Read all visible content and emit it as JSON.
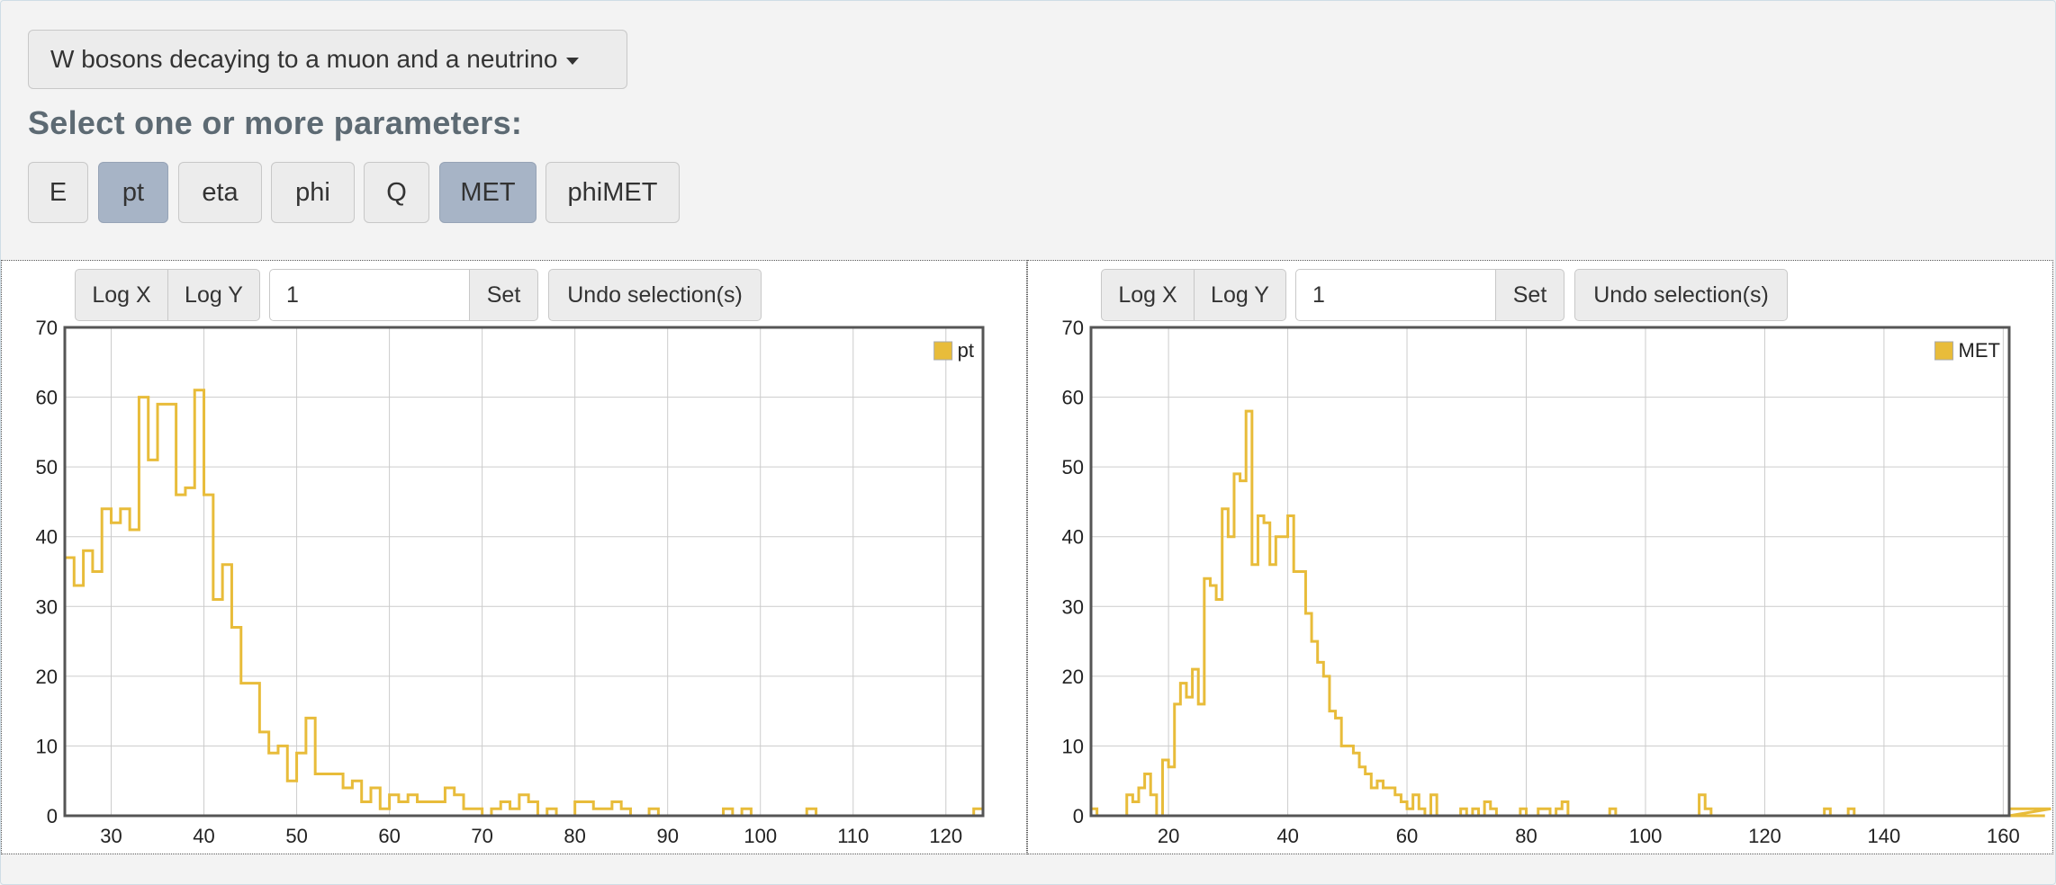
{
  "dataset_selector": {
    "label": "W bosons decaying to a muon and a neutrino",
    "caret_icon": "caret-down-icon"
  },
  "params_title": "Select one or more parameters:",
  "params": [
    {
      "label": "E",
      "active": false
    },
    {
      "label": "pt",
      "active": true
    },
    {
      "label": "eta",
      "active": false
    },
    {
      "label": "phi",
      "active": false
    },
    {
      "label": "Q",
      "active": false
    },
    {
      "label": "MET",
      "active": true
    },
    {
      "label": "phiMET",
      "active": false
    }
  ],
  "toolbar": {
    "logx": "Log X",
    "logy": "Log Y",
    "bin_value": "1",
    "set": "Set",
    "undo": "Undo selection(s)"
  },
  "colors": {
    "series": "#e8bc3a",
    "active_button": "#a7b4c6",
    "title": "#5d6a73"
  },
  "chart_data": [
    {
      "type": "histogram",
      "legend": "pt",
      "legend_position": "top-right",
      "grid": true,
      "xlim": [
        25,
        124
      ],
      "ylim": [
        0,
        70
      ],
      "x_ticks": [
        30,
        40,
        50,
        60,
        70,
        80,
        90,
        100,
        110,
        120
      ],
      "y_ticks": [
        0,
        10,
        20,
        30,
        40,
        50,
        60,
        70
      ],
      "bin_width": 1,
      "bins_start": 25,
      "values": [
        37,
        33,
        38,
        35,
        44,
        42,
        44,
        41,
        60,
        51,
        59,
        59,
        46,
        47,
        61,
        46,
        31,
        36,
        27,
        19,
        19,
        12,
        9,
        10,
        5,
        9,
        14,
        6,
        6,
        6,
        4,
        5,
        2,
        4,
        1,
        3,
        2,
        3,
        2,
        2,
        2,
        4,
        3,
        1,
        1,
        0,
        1,
        2,
        1,
        3,
        2,
        0,
        1,
        0,
        0,
        2,
        2,
        1,
        1,
        2,
        1,
        0,
        0,
        1,
        0,
        0,
        0,
        0,
        0,
        0,
        0,
        1,
        0,
        1,
        0,
        0,
        0,
        0,
        0,
        0,
        1,
        0,
        0,
        0,
        0,
        0,
        0,
        0,
        0,
        0,
        0,
        0,
        0,
        0,
        0,
        0,
        0,
        0,
        1
      ]
    },
    {
      "type": "histogram",
      "legend": "MET",
      "legend_position": "top-right",
      "grid": true,
      "xlim": [
        7,
        161
      ],
      "ylim": [
        0,
        70
      ],
      "x_ticks": [
        20,
        40,
        60,
        80,
        100,
        120,
        140,
        160
      ],
      "y_ticks": [
        0,
        10,
        20,
        30,
        40,
        50,
        60,
        70
      ],
      "bin_width": 1,
      "bins_start": 7,
      "values": [
        1,
        0,
        0,
        0,
        0,
        0,
        3,
        2,
        4,
        6,
        3,
        0,
        8,
        7,
        16,
        19,
        17,
        21,
        16,
        34,
        33,
        31,
        44,
        40,
        49,
        48,
        58,
        36,
        43,
        42,
        36,
        40,
        40,
        43,
        35,
        35,
        29,
        25,
        22,
        20,
        15,
        14,
        10,
        10,
        9,
        7,
        6,
        4,
        5,
        4,
        4,
        3,
        2,
        1,
        3,
        1,
        0,
        3,
        0,
        0,
        0,
        0,
        1,
        0,
        1,
        0,
        2,
        1,
        0,
        0,
        0,
        0,
        1,
        0,
        0,
        1,
        1,
        0,
        1,
        2,
        0,
        0,
        0,
        0,
        0,
        0,
        0,
        1,
        0,
        0,
        0,
        0,
        0,
        0,
        0,
        0,
        0,
        0,
        0,
        0,
        0,
        0,
        3,
        1,
        0,
        0,
        0,
        0,
        0,
        0,
        0,
        0,
        0,
        0,
        0,
        0,
        0,
        0,
        0,
        0,
        0,
        0,
        0,
        1,
        0,
        0,
        0,
        1,
        0,
        0,
        0,
        0,
        0,
        0,
        0,
        0,
        0,
        0,
        0,
        0,
        0,
        0,
        0,
        0,
        0,
        0,
        0,
        0,
        0,
        0,
        0,
        0,
        0,
        0,
        0,
        0,
        0,
        0,
        0,
        0,
        0,
        1
      ]
    }
  ]
}
